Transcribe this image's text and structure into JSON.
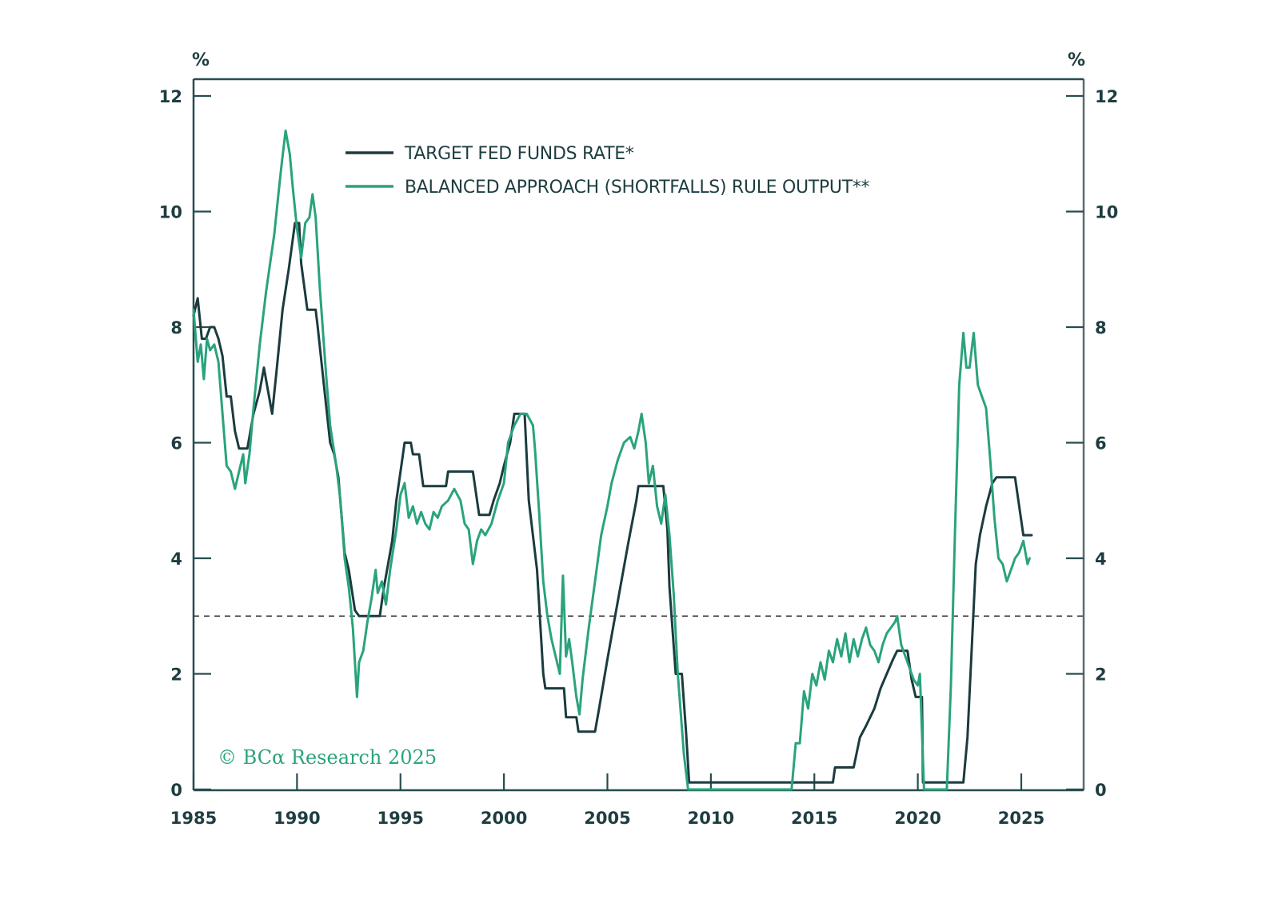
{
  "chart_data": {
    "type": "line",
    "title": "",
    "xlabel": "",
    "ylabel_left": "%",
    "ylabel_right": "%",
    "xlim": [
      1985,
      2028
    ],
    "ylim": [
      0,
      12
    ],
    "x_ticks": [
      1985,
      1990,
      1995,
      2000,
      2005,
      2010,
      2015,
      2020,
      2025
    ],
    "x_tick_labels": [
      "1985",
      "1990",
      "1995",
      "2000",
      "2005",
      "2010",
      "2015",
      "2020",
      "2025"
    ],
    "y_ticks": [
      0,
      2,
      4,
      6,
      8,
      10,
      12
    ],
    "y_tick_labels": [
      "0",
      "2",
      "4",
      "6",
      "8",
      "10",
      "12"
    ],
    "reference_line": {
      "value": 3,
      "style": "dashed"
    },
    "legend_position": "top-center",
    "grid": false,
    "annotation": "© BCα Research 2025",
    "series": [
      {
        "name": "TARGET FED FUNDS RATE*",
        "color": "#1b3b3f",
        "points": [
          [
            1985.0,
            8.2
          ],
          [
            1985.2,
            8.5
          ],
          [
            1985.4,
            7.8
          ],
          [
            1985.6,
            7.8
          ],
          [
            1985.8,
            8.0
          ],
          [
            1986.0,
            8.0
          ],
          [
            1986.2,
            7.8
          ],
          [
            1986.4,
            7.5
          ],
          [
            1986.6,
            6.8
          ],
          [
            1986.8,
            6.8
          ],
          [
            1987.0,
            6.2
          ],
          [
            1987.2,
            5.9
          ],
          [
            1987.6,
            5.9
          ],
          [
            1987.9,
            6.5
          ],
          [
            1988.2,
            6.9
          ],
          [
            1988.4,
            7.3
          ],
          [
            1988.6,
            6.9
          ],
          [
            1988.8,
            6.5
          ],
          [
            1989.0,
            7.2
          ],
          [
            1989.3,
            8.3
          ],
          [
            1989.6,
            9.0
          ],
          [
            1989.9,
            9.8
          ],
          [
            1990.1,
            9.8
          ],
          [
            1990.2,
            9.1
          ],
          [
            1990.5,
            8.3
          ],
          [
            1990.9,
            8.3
          ],
          [
            1991.0,
            8.0
          ],
          [
            1991.3,
            7.0
          ],
          [
            1991.6,
            6.0
          ],
          [
            1991.8,
            5.8
          ],
          [
            1992.0,
            5.4
          ],
          [
            1992.3,
            4.1
          ],
          [
            1992.5,
            3.8
          ],
          [
            1992.8,
            3.1
          ],
          [
            1993.0,
            3.0
          ],
          [
            1994.0,
            3.0
          ],
          [
            1994.2,
            3.5
          ],
          [
            1994.6,
            4.3
          ],
          [
            1994.8,
            5.0
          ],
          [
            1995.0,
            5.5
          ],
          [
            1995.2,
            6.0
          ],
          [
            1995.5,
            6.0
          ],
          [
            1995.6,
            5.8
          ],
          [
            1995.9,
            5.8
          ],
          [
            1996.1,
            5.25
          ],
          [
            1997.2,
            5.25
          ],
          [
            1997.3,
            5.5
          ],
          [
            1998.5,
            5.5
          ],
          [
            1998.8,
            4.75
          ],
          [
            1999.3,
            4.75
          ],
          [
            1999.5,
            5.0
          ],
          [
            1999.8,
            5.3
          ],
          [
            2000.0,
            5.6
          ],
          [
            2000.3,
            6.0
          ],
          [
            2000.5,
            6.5
          ],
          [
            2001.0,
            6.5
          ],
          [
            2001.2,
            5.0
          ],
          [
            2001.6,
            3.8
          ],
          [
            2001.9,
            2.0
          ],
          [
            2002.0,
            1.75
          ],
          [
            2002.9,
            1.75
          ],
          [
            2003.0,
            1.25
          ],
          [
            2003.5,
            1.25
          ],
          [
            2003.6,
            1.0
          ],
          [
            2004.4,
            1.0
          ],
          [
            2004.6,
            1.4
          ],
          [
            2005.0,
            2.25
          ],
          [
            2005.5,
            3.25
          ],
          [
            2006.0,
            4.25
          ],
          [
            2006.4,
            5.0
          ],
          [
            2006.5,
            5.25
          ],
          [
            2007.7,
            5.25
          ],
          [
            2007.9,
            4.5
          ],
          [
            2008.0,
            3.5
          ],
          [
            2008.3,
            2.0
          ],
          [
            2008.6,
            2.0
          ],
          [
            2008.8,
            1.0
          ],
          [
            2008.95,
            0.12
          ],
          [
            2015.9,
            0.12
          ],
          [
            2016.0,
            0.38
          ],
          [
            2016.9,
            0.38
          ],
          [
            2017.2,
            0.9
          ],
          [
            2017.5,
            1.1
          ],
          [
            2017.9,
            1.4
          ],
          [
            2018.2,
            1.75
          ],
          [
            2018.5,
            2.0
          ],
          [
            2018.8,
            2.25
          ],
          [
            2019.0,
            2.4
          ],
          [
            2019.5,
            2.4
          ],
          [
            2019.7,
            1.9
          ],
          [
            2019.9,
            1.6
          ],
          [
            2020.2,
            1.6
          ],
          [
            2020.25,
            0.12
          ],
          [
            2022.2,
            0.12
          ],
          [
            2022.4,
            0.9
          ],
          [
            2022.6,
            2.4
          ],
          [
            2022.8,
            3.9
          ],
          [
            2023.0,
            4.4
          ],
          [
            2023.3,
            4.9
          ],
          [
            2023.6,
            5.3
          ],
          [
            2023.8,
            5.4
          ],
          [
            2024.7,
            5.4
          ],
          [
            2024.9,
            4.9
          ],
          [
            2025.1,
            4.4
          ],
          [
            2025.5,
            4.4
          ]
        ]
      },
      {
        "name": "BALANCED APPROACH (SHORTFALLS) RULE OUTPUT**",
        "color": "#2aa37d",
        "points": [
          [
            1985.0,
            8.3
          ],
          [
            1985.2,
            7.4
          ],
          [
            1985.35,
            7.7
          ],
          [
            1985.5,
            7.1
          ],
          [
            1985.65,
            7.8
          ],
          [
            1985.8,
            7.6
          ],
          [
            1986.0,
            7.7
          ],
          [
            1986.2,
            7.4
          ],
          [
            1986.4,
            6.5
          ],
          [
            1986.6,
            5.6
          ],
          [
            1986.8,
            5.5
          ],
          [
            1987.0,
            5.2
          ],
          [
            1987.2,
            5.5
          ],
          [
            1987.4,
            5.8
          ],
          [
            1987.5,
            5.3
          ],
          [
            1987.7,
            5.8
          ],
          [
            1987.9,
            6.6
          ],
          [
            1988.2,
            7.7
          ],
          [
            1988.5,
            8.6
          ],
          [
            1988.7,
            9.1
          ],
          [
            1988.9,
            9.6
          ],
          [
            1989.1,
            10.3
          ],
          [
            1989.25,
            10.8
          ],
          [
            1989.45,
            11.4
          ],
          [
            1989.65,
            11.0
          ],
          [
            1989.8,
            10.4
          ],
          [
            1990.0,
            9.7
          ],
          [
            1990.2,
            9.2
          ],
          [
            1990.4,
            9.8
          ],
          [
            1990.6,
            9.9
          ],
          [
            1990.75,
            10.3
          ],
          [
            1990.9,
            9.9
          ],
          [
            1991.1,
            8.7
          ],
          [
            1991.4,
            7.2
          ],
          [
            1991.6,
            6.3
          ],
          [
            1991.9,
            5.6
          ],
          [
            1992.1,
            5.0
          ],
          [
            1992.3,
            4.0
          ],
          [
            1992.5,
            3.5
          ],
          [
            1992.7,
            2.8
          ],
          [
            1992.9,
            1.6
          ],
          [
            1993.0,
            2.2
          ],
          [
            1993.2,
            2.4
          ],
          [
            1993.4,
            2.9
          ],
          [
            1993.6,
            3.3
          ],
          [
            1993.8,
            3.8
          ],
          [
            1993.9,
            3.4
          ],
          [
            1994.1,
            3.6
          ],
          [
            1994.3,
            3.2
          ],
          [
            1994.5,
            3.8
          ],
          [
            1994.8,
            4.5
          ],
          [
            1995.0,
            5.1
          ],
          [
            1995.2,
            5.3
          ],
          [
            1995.4,
            4.7
          ],
          [
            1995.6,
            4.9
          ],
          [
            1995.8,
            4.6
          ],
          [
            1996.0,
            4.8
          ],
          [
            1996.2,
            4.6
          ],
          [
            1996.4,
            4.5
          ],
          [
            1996.6,
            4.8
          ],
          [
            1996.8,
            4.7
          ],
          [
            1997.0,
            4.9
          ],
          [
            1997.3,
            5.0
          ],
          [
            1997.6,
            5.2
          ],
          [
            1997.9,
            5.0
          ],
          [
            1998.1,
            4.6
          ],
          [
            1998.3,
            4.5
          ],
          [
            1998.5,
            3.9
          ],
          [
            1998.7,
            4.3
          ],
          [
            1998.9,
            4.5
          ],
          [
            1999.1,
            4.4
          ],
          [
            1999.4,
            4.6
          ],
          [
            1999.7,
            5.0
          ],
          [
            2000.0,
            5.3
          ],
          [
            2000.2,
            6.0
          ],
          [
            2000.5,
            6.3
          ],
          [
            2000.8,
            6.5
          ],
          [
            2001.1,
            6.5
          ],
          [
            2001.4,
            6.3
          ],
          [
            2001.5,
            5.9
          ],
          [
            2001.7,
            4.8
          ],
          [
            2001.9,
            3.6
          ],
          [
            2002.1,
            3.0
          ],
          [
            2002.3,
            2.6
          ],
          [
            2002.5,
            2.3
          ],
          [
            2002.7,
            2.0
          ],
          [
            2002.85,
            3.7
          ],
          [
            2003.0,
            2.3
          ],
          [
            2003.15,
            2.6
          ],
          [
            2003.3,
            2.2
          ],
          [
            2003.5,
            1.6
          ],
          [
            2003.65,
            1.3
          ],
          [
            2003.8,
            1.9
          ],
          [
            2004.1,
            2.8
          ],
          [
            2004.4,
            3.6
          ],
          [
            2004.7,
            4.4
          ],
          [
            2005.0,
            4.9
          ],
          [
            2005.2,
            5.3
          ],
          [
            2005.5,
            5.7
          ],
          [
            2005.8,
            6.0
          ],
          [
            2006.1,
            6.1
          ],
          [
            2006.3,
            5.9
          ],
          [
            2006.5,
            6.2
          ],
          [
            2006.65,
            6.5
          ],
          [
            2006.85,
            6.0
          ],
          [
            2007.0,
            5.3
          ],
          [
            2007.2,
            5.6
          ],
          [
            2007.4,
            4.9
          ],
          [
            2007.6,
            4.6
          ],
          [
            2007.8,
            5.1
          ],
          [
            2008.0,
            4.4
          ],
          [
            2008.2,
            3.4
          ],
          [
            2008.4,
            2.0
          ],
          [
            2008.7,
            0.6
          ],
          [
            2008.9,
            0.0
          ],
          [
            2013.9,
            0.0
          ],
          [
            2014.1,
            0.8
          ],
          [
            2014.3,
            0.8
          ],
          [
            2014.5,
            1.7
          ],
          [
            2014.7,
            1.4
          ],
          [
            2014.9,
            2.0
          ],
          [
            2015.1,
            1.8
          ],
          [
            2015.3,
            2.2
          ],
          [
            2015.5,
            1.9
          ],
          [
            2015.7,
            2.4
          ],
          [
            2015.9,
            2.2
          ],
          [
            2016.1,
            2.6
          ],
          [
            2016.3,
            2.3
          ],
          [
            2016.5,
            2.7
          ],
          [
            2016.7,
            2.2
          ],
          [
            2016.9,
            2.6
          ],
          [
            2017.1,
            2.3
          ],
          [
            2017.3,
            2.6
          ],
          [
            2017.5,
            2.8
          ],
          [
            2017.7,
            2.5
          ],
          [
            2017.9,
            2.4
          ],
          [
            2018.1,
            2.2
          ],
          [
            2018.3,
            2.5
          ],
          [
            2018.5,
            2.7
          ],
          [
            2018.7,
            2.8
          ],
          [
            2018.9,
            2.9
          ],
          [
            2019.0,
            3.0
          ],
          [
            2019.2,
            2.5
          ],
          [
            2019.4,
            2.3
          ],
          [
            2019.6,
            2.1
          ],
          [
            2019.8,
            1.9
          ],
          [
            2020.0,
            1.8
          ],
          [
            2020.1,
            2.0
          ],
          [
            2020.3,
            0.0
          ],
          [
            2021.4,
            0.0
          ],
          [
            2021.6,
            1.8
          ],
          [
            2021.8,
            4.5
          ],
          [
            2022.0,
            7.0
          ],
          [
            2022.2,
            7.9
          ],
          [
            2022.35,
            7.3
          ],
          [
            2022.5,
            7.3
          ],
          [
            2022.7,
            7.9
          ],
          [
            2022.9,
            7.0
          ],
          [
            2023.1,
            6.8
          ],
          [
            2023.3,
            6.6
          ],
          [
            2023.5,
            5.7
          ],
          [
            2023.7,
            4.7
          ],
          [
            2023.9,
            4.0
          ],
          [
            2024.1,
            3.9
          ],
          [
            2024.3,
            3.6
          ],
          [
            2024.5,
            3.8
          ],
          [
            2024.7,
            4.0
          ],
          [
            2024.9,
            4.1
          ],
          [
            2025.1,
            4.3
          ],
          [
            2025.3,
            3.9
          ],
          [
            2025.4,
            4.0
          ]
        ]
      }
    ]
  }
}
